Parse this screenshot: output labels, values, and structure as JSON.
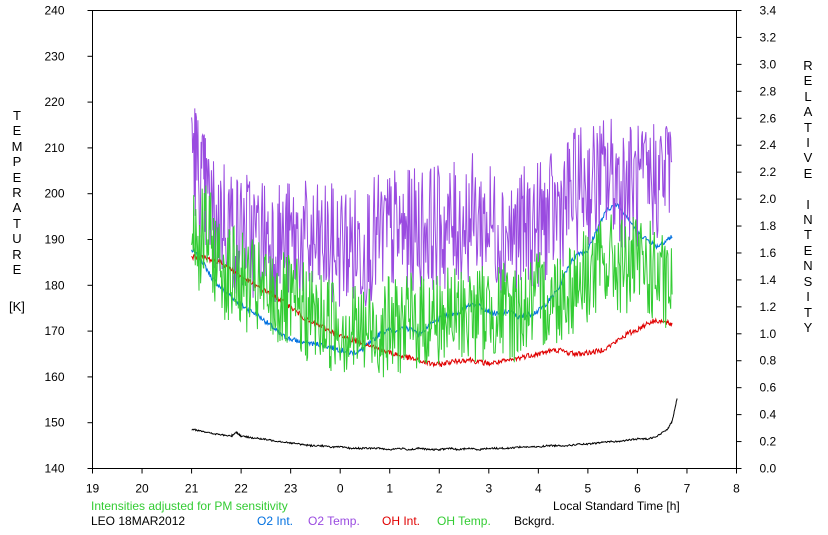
{
  "chart_data": {
    "type": "line",
    "left_axis": {
      "label": "TEMPERATURE",
      "unit": "[K]",
      "ylim": [
        140,
        240
      ],
      "ticks": [
        "140",
        "150",
        "160",
        "170",
        "180",
        "190",
        "200",
        "210",
        "220",
        "230",
        "240"
      ]
    },
    "right_axis": {
      "label": "RELATIVE INTENSITY",
      "ylim": [
        0.0,
        3.4
      ],
      "ticks": [
        "0.0",
        "0.2",
        "0.4",
        "0.6",
        "0.8",
        "1.0",
        "1.2",
        "1.4",
        "1.6",
        "1.8",
        "2.0",
        "2.2",
        "2.4",
        "2.6",
        "2.8",
        "3.0",
        "3.2",
        "3.4"
      ]
    },
    "x_axis": {
      "label": "Local Standard Time [h]",
      "ticks": [
        "19",
        "20",
        "21",
        "22",
        "23",
        "0",
        "1",
        "2",
        "3",
        "4",
        "5",
        "6",
        "7",
        "8"
      ]
    },
    "grid": false,
    "series": [
      {
        "name": "O2 Int.",
        "color": "#0070e0",
        "axis": "right",
        "points": [
          [
            21.0,
            1.62
          ],
          [
            21.2,
            1.55
          ],
          [
            21.4,
            1.42
          ],
          [
            21.6,
            1.34
          ],
          [
            21.8,
            1.28
          ],
          [
            22.0,
            1.21
          ],
          [
            22.2,
            1.17
          ],
          [
            22.4,
            1.12
          ],
          [
            22.6,
            1.06
          ],
          [
            22.8,
            0.99
          ],
          [
            23.0,
            0.96
          ],
          [
            23.2,
            0.94
          ],
          [
            23.4,
            0.93
          ],
          [
            23.6,
            0.92
          ],
          [
            23.8,
            0.9
          ],
          [
            24.0,
            0.88
          ],
          [
            24.2,
            0.86
          ],
          [
            24.4,
            0.87
          ],
          [
            24.6,
            0.93
          ],
          [
            24.8,
            1.0
          ],
          [
            25.0,
            1.03
          ],
          [
            25.2,
            1.03
          ],
          [
            25.4,
            1.04
          ],
          [
            25.6,
            1.0
          ],
          [
            25.8,
            1.06
          ],
          [
            26.0,
            1.11
          ],
          [
            26.2,
            1.14
          ],
          [
            26.4,
            1.16
          ],
          [
            26.6,
            1.22
          ],
          [
            26.8,
            1.21
          ],
          [
            27.0,
            1.17
          ],
          [
            27.2,
            1.14
          ],
          [
            27.4,
            1.17
          ],
          [
            27.6,
            1.12
          ],
          [
            27.8,
            1.14
          ],
          [
            28.0,
            1.17
          ],
          [
            28.2,
            1.24
          ],
          [
            28.4,
            1.33
          ],
          [
            28.6,
            1.5
          ],
          [
            28.8,
            1.6
          ],
          [
            29.0,
            1.62
          ],
          [
            29.2,
            1.79
          ],
          [
            29.4,
            1.93
          ],
          [
            29.6,
            1.96
          ],
          [
            29.8,
            1.87
          ],
          [
            30.0,
            1.75
          ],
          [
            30.2,
            1.7
          ],
          [
            30.4,
            1.65
          ],
          [
            30.6,
            1.7
          ],
          [
            30.7,
            1.72
          ]
        ]
      },
      {
        "name": "O2 Temp.",
        "color": "#9a4be0",
        "axis": "left",
        "points": [
          [
            21.0,
            213
          ],
          [
            21.15,
            203
          ],
          [
            21.3,
            199
          ],
          [
            21.5,
            193
          ],
          [
            21.7,
            196
          ],
          [
            21.9,
            191
          ],
          [
            22.1,
            192
          ],
          [
            22.3,
            190
          ],
          [
            22.5,
            191
          ],
          [
            22.7,
            190
          ],
          [
            22.9,
            189
          ],
          [
            23.1,
            190
          ],
          [
            23.3,
            189
          ],
          [
            23.5,
            188
          ],
          [
            23.7,
            189
          ],
          [
            23.9,
            188
          ],
          [
            24.1,
            189
          ],
          [
            24.3,
            188
          ],
          [
            24.5,
            189
          ],
          [
            24.7,
            190
          ],
          [
            24.9,
            191
          ],
          [
            25.1,
            192
          ],
          [
            25.3,
            191
          ],
          [
            25.5,
            192
          ],
          [
            25.7,
            193
          ],
          [
            25.9,
            193
          ],
          [
            26.1,
            192
          ],
          [
            26.3,
            193
          ],
          [
            26.5,
            194
          ],
          [
            26.7,
            195
          ],
          [
            26.9,
            194
          ],
          [
            27.1,
            193
          ],
          [
            27.3,
            192
          ],
          [
            27.5,
            191
          ],
          [
            27.7,
            192
          ],
          [
            27.9,
            193
          ],
          [
            28.1,
            194
          ],
          [
            28.3,
            195
          ],
          [
            28.5,
            198
          ],
          [
            28.7,
            200
          ],
          [
            28.9,
            202
          ],
          [
            29.1,
            202
          ],
          [
            29.3,
            203
          ],
          [
            29.5,
            204
          ],
          [
            29.7,
            202
          ],
          [
            29.9,
            202
          ],
          [
            30.1,
            201
          ],
          [
            30.3,
            203
          ],
          [
            30.5,
            204
          ],
          [
            30.7,
            207
          ]
        ]
      },
      {
        "name": "OH Int.",
        "color": "#e00000",
        "axis": "right",
        "points": [
          [
            21.0,
            1.57
          ],
          [
            21.2,
            1.57
          ],
          [
            21.4,
            1.55
          ],
          [
            21.6,
            1.53
          ],
          [
            21.8,
            1.48
          ],
          [
            22.0,
            1.43
          ],
          [
            22.2,
            1.38
          ],
          [
            22.4,
            1.33
          ],
          [
            22.6,
            1.3
          ],
          [
            22.8,
            1.25
          ],
          [
            23.0,
            1.2
          ],
          [
            23.2,
            1.14
          ],
          [
            23.4,
            1.08
          ],
          [
            23.6,
            1.06
          ],
          [
            23.8,
            1.02
          ],
          [
            24.0,
            0.98
          ],
          [
            24.2,
            0.96
          ],
          [
            24.4,
            0.94
          ],
          [
            24.6,
            0.92
          ],
          [
            24.8,
            0.88
          ],
          [
            25.0,
            0.86
          ],
          [
            25.2,
            0.84
          ],
          [
            25.4,
            0.82
          ],
          [
            25.6,
            0.8
          ],
          [
            25.8,
            0.78
          ],
          [
            26.0,
            0.77
          ],
          [
            26.2,
            0.79
          ],
          [
            26.4,
            0.8
          ],
          [
            26.6,
            0.81
          ],
          [
            26.8,
            0.79
          ],
          [
            27.0,
            0.78
          ],
          [
            27.2,
            0.79
          ],
          [
            27.4,
            0.8
          ],
          [
            27.6,
            0.82
          ],
          [
            27.8,
            0.84
          ],
          [
            28.0,
            0.85
          ],
          [
            28.2,
            0.87
          ],
          [
            28.4,
            0.88
          ],
          [
            28.6,
            0.86
          ],
          [
            28.8,
            0.85
          ],
          [
            29.0,
            0.86
          ],
          [
            29.2,
            0.87
          ],
          [
            29.4,
            0.9
          ],
          [
            29.6,
            0.95
          ],
          [
            29.8,
            1.0
          ],
          [
            30.0,
            1.03
          ],
          [
            30.2,
            1.08
          ],
          [
            30.4,
            1.1
          ],
          [
            30.6,
            1.08
          ],
          [
            30.7,
            1.07
          ]
        ]
      },
      {
        "name": "OH Temp.",
        "color": "#33cc33",
        "axis": "left",
        "points": [
          [
            21.0,
            195
          ],
          [
            21.15,
            189
          ],
          [
            21.3,
            192
          ],
          [
            21.5,
            186
          ],
          [
            21.7,
            183
          ],
          [
            21.9,
            182
          ],
          [
            22.1,
            180
          ],
          [
            22.3,
            179
          ],
          [
            22.5,
            178
          ],
          [
            22.7,
            177
          ],
          [
            22.9,
            176
          ],
          [
            23.1,
            175
          ],
          [
            23.3,
            174
          ],
          [
            23.5,
            173
          ],
          [
            23.7,
            172
          ],
          [
            23.9,
            172
          ],
          [
            24.1,
            171
          ],
          [
            24.3,
            170
          ],
          [
            24.5,
            170
          ],
          [
            24.7,
            170
          ],
          [
            24.9,
            171
          ],
          [
            25.1,
            171
          ],
          [
            25.3,
            172
          ],
          [
            25.5,
            172
          ],
          [
            25.7,
            172
          ],
          [
            25.9,
            173
          ],
          [
            26.1,
            173
          ],
          [
            26.3,
            173
          ],
          [
            26.5,
            174
          ],
          [
            26.7,
            174
          ],
          [
            26.9,
            174
          ],
          [
            27.1,
            175
          ],
          [
            27.3,
            174
          ],
          [
            27.5,
            174
          ],
          [
            27.7,
            175
          ],
          [
            27.9,
            176
          ],
          [
            28.1,
            177
          ],
          [
            28.3,
            177
          ],
          [
            28.5,
            179
          ],
          [
            28.7,
            180
          ],
          [
            28.9,
            182
          ],
          [
            29.1,
            183
          ],
          [
            29.3,
            184
          ],
          [
            29.5,
            185
          ],
          [
            29.7,
            184
          ],
          [
            29.9,
            184
          ],
          [
            30.1,
            184
          ],
          [
            30.3,
            183
          ],
          [
            30.5,
            180
          ],
          [
            30.7,
            178
          ]
        ]
      },
      {
        "name": "Bckgrd.",
        "color": "#000000",
        "axis": "right",
        "points": [
          [
            21.0,
            0.29
          ],
          [
            21.2,
            0.28
          ],
          [
            21.4,
            0.26
          ],
          [
            21.6,
            0.25
          ],
          [
            21.8,
            0.24
          ],
          [
            21.9,
            0.27
          ],
          [
            22.0,
            0.24
          ],
          [
            22.2,
            0.23
          ],
          [
            22.4,
            0.22
          ],
          [
            22.6,
            0.21
          ],
          [
            22.8,
            0.2
          ],
          [
            23.0,
            0.19
          ],
          [
            23.2,
            0.18
          ],
          [
            23.4,
            0.17
          ],
          [
            23.6,
            0.17
          ],
          [
            23.8,
            0.16
          ],
          [
            24.0,
            0.16
          ],
          [
            24.2,
            0.15
          ],
          [
            24.4,
            0.15
          ],
          [
            24.6,
            0.15
          ],
          [
            24.8,
            0.15
          ],
          [
            25.0,
            0.14
          ],
          [
            25.2,
            0.15
          ],
          [
            25.4,
            0.14
          ],
          [
            25.6,
            0.15
          ],
          [
            25.8,
            0.14
          ],
          [
            26.0,
            0.14
          ],
          [
            26.2,
            0.15
          ],
          [
            26.4,
            0.14
          ],
          [
            26.6,
            0.15
          ],
          [
            26.8,
            0.14
          ],
          [
            27.0,
            0.15
          ],
          [
            27.2,
            0.15
          ],
          [
            27.4,
            0.15
          ],
          [
            27.6,
            0.16
          ],
          [
            27.8,
            0.16
          ],
          [
            28.0,
            0.16
          ],
          [
            28.2,
            0.17
          ],
          [
            28.4,
            0.17
          ],
          [
            28.6,
            0.17
          ],
          [
            28.8,
            0.18
          ],
          [
            29.0,
            0.18
          ],
          [
            29.2,
            0.19
          ],
          [
            29.4,
            0.2
          ],
          [
            29.6,
            0.2
          ],
          [
            29.8,
            0.21
          ],
          [
            30.0,
            0.22
          ],
          [
            30.2,
            0.22
          ],
          [
            30.4,
            0.24
          ],
          [
            30.6,
            0.29
          ],
          [
            30.7,
            0.35
          ],
          [
            30.8,
            0.52
          ]
        ]
      }
    ]
  },
  "footer": {
    "note": "Intensities adjusted for PM sensitivity",
    "note_color": "#33cc33",
    "station": "LEO 18MAR2012",
    "legend": [
      {
        "label": "O2 Int.",
        "color": "#0070e0"
      },
      {
        "label": "O2 Temp.",
        "color": "#9a4be0"
      },
      {
        "label": "OH Int.",
        "color": "#e00000"
      },
      {
        "label": "OH Temp.",
        "color": "#33cc33"
      },
      {
        "label": "Bckgrd.",
        "color": "#000000"
      }
    ]
  }
}
